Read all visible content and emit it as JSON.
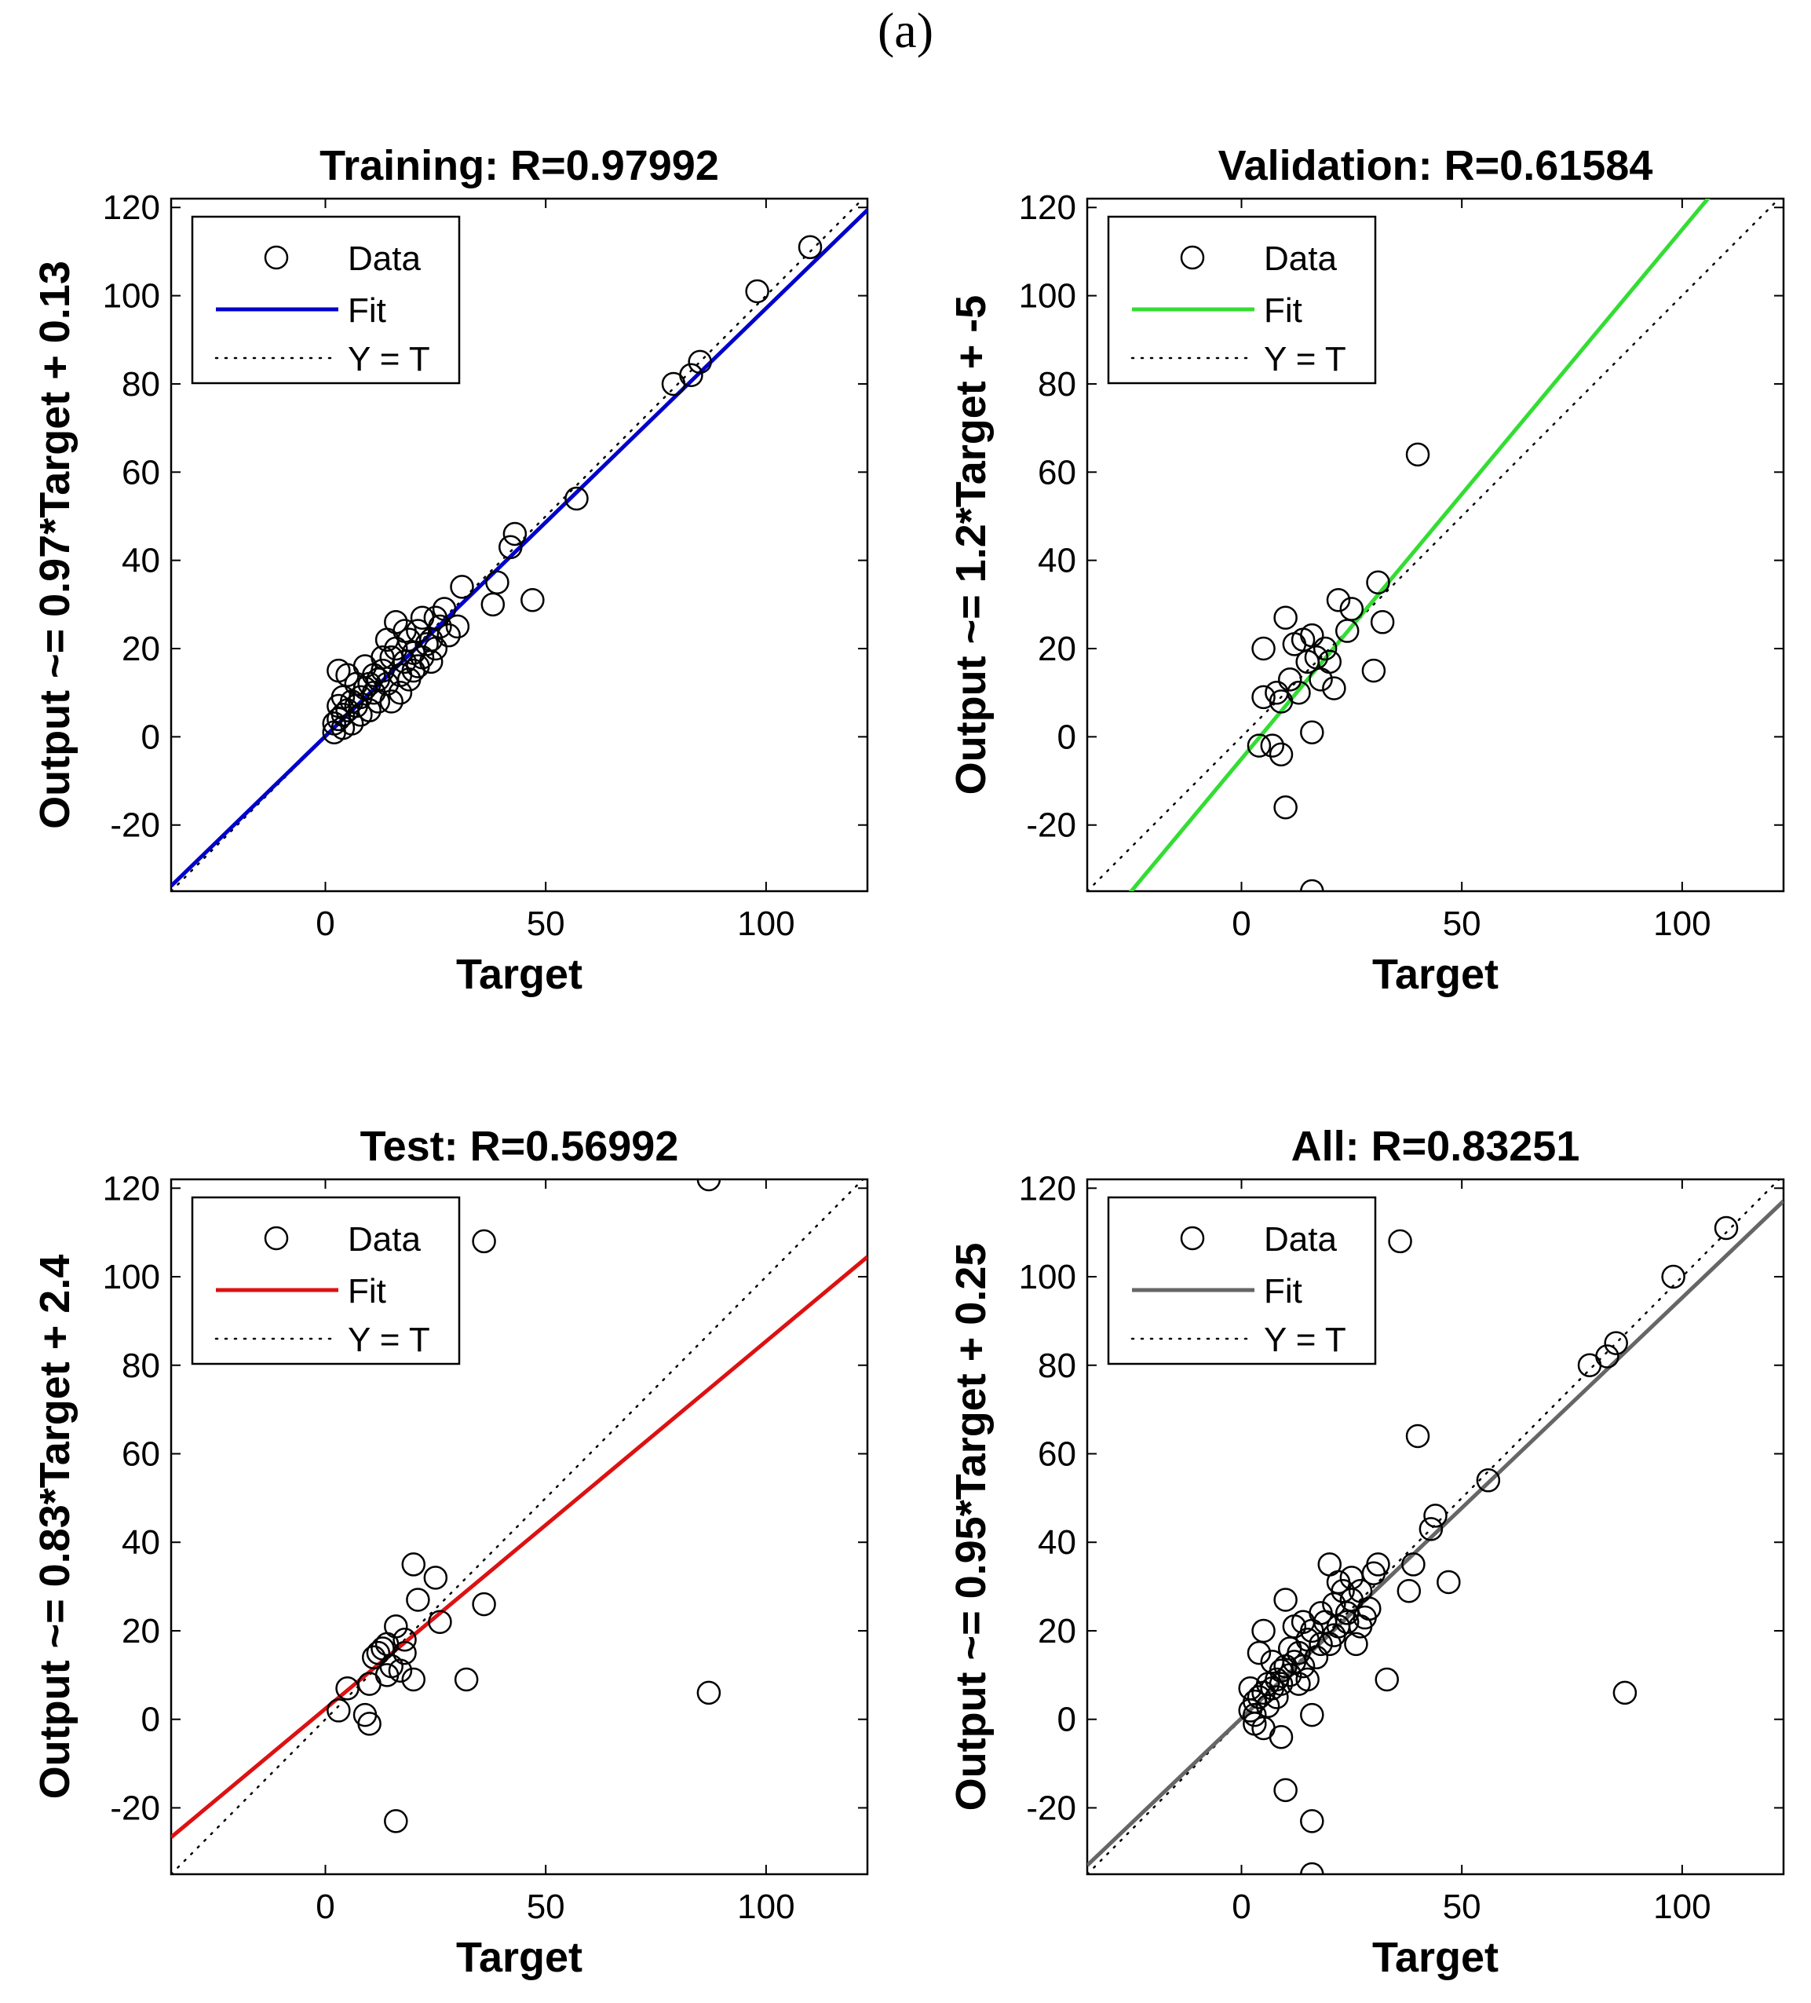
{
  "caption": "(a)",
  "chart_data": [
    {
      "type": "scatter",
      "title": "Training: R=0.97992",
      "xlabel": "Target",
      "ylabel": "Output ~= 0.97*Target + 0.13",
      "xlim": [
        -35,
        123
      ],
      "ylim": [
        -35,
        122
      ],
      "xticks": [
        0,
        50,
        100
      ],
      "yticks": [
        -20,
        0,
        20,
        40,
        60,
        80,
        100,
        120
      ],
      "fit": {
        "slope": 0.97,
        "intercept": 0.13,
        "color": "#0000cc"
      },
      "legend": {
        "position": "top-left",
        "entries": [
          "Data",
          "Fit",
          "Y = T"
        ]
      },
      "points": [
        [
          110,
          111
        ],
        [
          98,
          101
        ],
        [
          85,
          85
        ],
        [
          83,
          82
        ],
        [
          79,
          80
        ],
        [
          57,
          54
        ],
        [
          43,
          46
        ],
        [
          42,
          43
        ],
        [
          47,
          31
        ],
        [
          39,
          35
        ],
        [
          38,
          30
        ],
        [
          31,
          34
        ],
        [
          27,
          29
        ],
        [
          25,
          27
        ],
        [
          30,
          25
        ],
        [
          28,
          23
        ],
        [
          26,
          25
        ],
        [
          24,
          22
        ],
        [
          23,
          21
        ],
        [
          25,
          20
        ],
        [
          22,
          18
        ],
        [
          21,
          16
        ],
        [
          20,
          19
        ],
        [
          19,
          22
        ],
        [
          18,
          17
        ],
        [
          17,
          14
        ],
        [
          16,
          20
        ],
        [
          15,
          18
        ],
        [
          14,
          12
        ],
        [
          13,
          15
        ],
        [
          12,
          13
        ],
        [
          11,
          10
        ],
        [
          10,
          12
        ],
        [
          9,
          11
        ],
        [
          8,
          9
        ],
        [
          7,
          7
        ],
        [
          6,
          8
        ],
        [
          5,
          6
        ],
        [
          4,
          5
        ],
        [
          3,
          4
        ],
        [
          3,
          7
        ],
        [
          2,
          3
        ],
        [
          2,
          1
        ],
        [
          3,
          15
        ],
        [
          5,
          14
        ],
        [
          4,
          2
        ],
        [
          6,
          3
        ],
        [
          8,
          5
        ],
        [
          10,
          6
        ],
        [
          12,
          8
        ],
        [
          15,
          8
        ],
        [
          17,
          10
        ],
        [
          19,
          13
        ],
        [
          21,
          24
        ],
        [
          16,
          26
        ],
        [
          14,
          22
        ],
        [
          9,
          16
        ],
        [
          7,
          12
        ],
        [
          4,
          9
        ],
        [
          11,
          14
        ],
        [
          13,
          18
        ],
        [
          18,
          24
        ],
        [
          22,
          27
        ],
        [
          20,
          15
        ],
        [
          24,
          17
        ]
      ]
    },
    {
      "type": "scatter",
      "title": "Validation: R=0.61584",
      "xlabel": "Target",
      "ylabel": "Output ~= 1.2*Target + -5",
      "xlim": [
        -35,
        123
      ],
      "ylim": [
        -35,
        122
      ],
      "xticks": [
        0,
        50,
        100
      ],
      "yticks": [
        -20,
        0,
        20,
        40,
        60,
        80,
        100,
        120
      ],
      "fit": {
        "slope": 1.2,
        "intercept": -5,
        "color": "#33dd33"
      },
      "legend": {
        "position": "top-left",
        "entries": [
          "Data",
          "Fit",
          "Y = T"
        ]
      },
      "points": [
        [
          40,
          64
        ],
        [
          31,
          35
        ],
        [
          32,
          26
        ],
        [
          30,
          15
        ],
        [
          25,
          29
        ],
        [
          22,
          31
        ],
        [
          24,
          24
        ],
        [
          19,
          20
        ],
        [
          20,
          17
        ],
        [
          18,
          13
        ],
        [
          21,
          11
        ],
        [
          16,
          23
        ],
        [
          15,
          17
        ],
        [
          14,
          22
        ],
        [
          12,
          21
        ],
        [
          11,
          13
        ],
        [
          13,
          10
        ],
        [
          10,
          27
        ],
        [
          9,
          8
        ],
        [
          8,
          10
        ],
        [
          5,
          20
        ],
        [
          5,
          9
        ],
        [
          4,
          -2
        ],
        [
          7,
          -2
        ],
        [
          9,
          -4
        ],
        [
          10,
          -16
        ],
        [
          16,
          1
        ],
        [
          16,
          -35
        ],
        [
          17,
          18
        ]
      ]
    },
    {
      "type": "scatter",
      "title": "Test: R=0.56992",
      "xlabel": "Target",
      "ylabel": "Output ~= 0.83*Target + 2.4",
      "xlim": [
        -35,
        123
      ],
      "ylim": [
        -35,
        122
      ],
      "xticks": [
        0,
        50,
        100
      ],
      "yticks": [
        -20,
        0,
        20,
        40,
        60,
        80,
        100,
        120
      ],
      "fit": {
        "slope": 0.83,
        "intercept": 2.4,
        "color": "#dd1111"
      },
      "legend": {
        "position": "top-left",
        "entries": [
          "Data",
          "Fit",
          "Y = T"
        ]
      },
      "points": [
        [
          87,
          122
        ],
        [
          36,
          108
        ],
        [
          20,
          35
        ],
        [
          25,
          32
        ],
        [
          36,
          26
        ],
        [
          21,
          27
        ],
        [
          26,
          22
        ],
        [
          16,
          21
        ],
        [
          18,
          18
        ],
        [
          14,
          17
        ],
        [
          13,
          16
        ],
        [
          12,
          15
        ],
        [
          11,
          14
        ],
        [
          10,
          8
        ],
        [
          15,
          12
        ],
        [
          14,
          10
        ],
        [
          17,
          11
        ],
        [
          20,
          9
        ],
        [
          32,
          9
        ],
        [
          3,
          2
        ],
        [
          5,
          7
        ],
        [
          9,
          1
        ],
        [
          10,
          -1
        ],
        [
          16,
          -23
        ],
        [
          87,
          6
        ],
        [
          18,
          15
        ]
      ]
    },
    {
      "type": "scatter",
      "title": "All: R=0.83251",
      "xlabel": "Target",
      "ylabel": "Output ~= 0.95*Target + 0.25",
      "xlim": [
        -35,
        123
      ],
      "ylim": [
        -35,
        122
      ],
      "xticks": [
        0,
        50,
        100
      ],
      "yticks": [
        -20,
        0,
        20,
        40,
        60,
        80,
        100,
        120
      ],
      "fit": {
        "slope": 0.95,
        "intercept": 0.25,
        "color": "#666666"
      },
      "legend": {
        "position": "top-left",
        "entries": [
          "Data",
          "Fit",
          "Y = T"
        ]
      },
      "points": [
        [
          110,
          111
        ],
        [
          98,
          100
        ],
        [
          85,
          85
        ],
        [
          83,
          82
        ],
        [
          79,
          80
        ],
        [
          36,
          108
        ],
        [
          40,
          64
        ],
        [
          56,
          54
        ],
        [
          44,
          46
        ],
        [
          43,
          43
        ],
        [
          47,
          31
        ],
        [
          39,
          35
        ],
        [
          38,
          29
        ],
        [
          33,
          9
        ],
        [
          87,
          6
        ],
        [
          31,
          35
        ],
        [
          30,
          33
        ],
        [
          27,
          29
        ],
        [
          25,
          27
        ],
        [
          28,
          23
        ],
        [
          24,
          22
        ],
        [
          22,
          21
        ],
        [
          21,
          19
        ],
        [
          20,
          17
        ],
        [
          19,
          22
        ],
        [
          18,
          17
        ],
        [
          17,
          14
        ],
        [
          16,
          20
        ],
        [
          15,
          18
        ],
        [
          14,
          12
        ],
        [
          13,
          15
        ],
        [
          12,
          13
        ],
        [
          11,
          10
        ],
        [
          10,
          12
        ],
        [
          9,
          11
        ],
        [
          8,
          9
        ],
        [
          7,
          7
        ],
        [
          6,
          8
        ],
        [
          5,
          6
        ],
        [
          4,
          5
        ],
        [
          3,
          4
        ],
        [
          2,
          2
        ],
        [
          2,
          7
        ],
        [
          3,
          1
        ],
        [
          4,
          15
        ],
        [
          5,
          20
        ],
        [
          10,
          27
        ],
        [
          9,
          8
        ],
        [
          5,
          -2
        ],
        [
          9,
          -4
        ],
        [
          10,
          -16
        ],
        [
          16,
          1
        ],
        [
          16,
          -23
        ],
        [
          16,
          -35
        ],
        [
          22,
          31
        ],
        [
          25,
          32
        ],
        [
          20,
          35
        ],
        [
          14,
          22
        ],
        [
          12,
          21
        ],
        [
          18,
          24
        ],
        [
          21,
          26
        ],
        [
          24,
          24
        ],
        [
          26,
          17
        ],
        [
          23,
          29
        ],
        [
          11,
          16
        ],
        [
          7,
          13
        ],
        [
          6,
          3
        ],
        [
          8,
          5
        ],
        [
          3,
          -1
        ],
        [
          13,
          8
        ],
        [
          15,
          9
        ],
        [
          29,
          25
        ],
        [
          27,
          21
        ]
      ]
    }
  ]
}
